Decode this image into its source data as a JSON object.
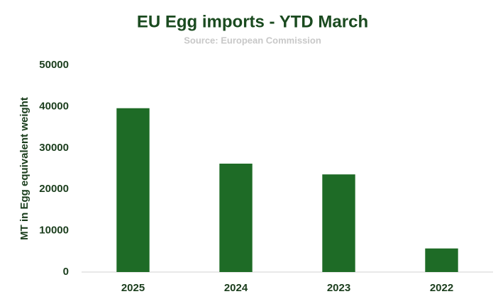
{
  "chart_data": {
    "type": "bar",
    "title": "EU Egg imports - YTD March",
    "subtitle": "Source: European Commission",
    "y_label": "MT in Egg equivalent weight",
    "categories": [
      "2025",
      "2024",
      "2023",
      "2022"
    ],
    "values": [
      39600,
      26200,
      23600,
      5700
    ],
    "color": "#1e6b26",
    "ylim": [
      0,
      50000
    ],
    "yticks": [
      0,
      10000,
      20000,
      30000,
      40000,
      50000
    ],
    "grid": false
  }
}
